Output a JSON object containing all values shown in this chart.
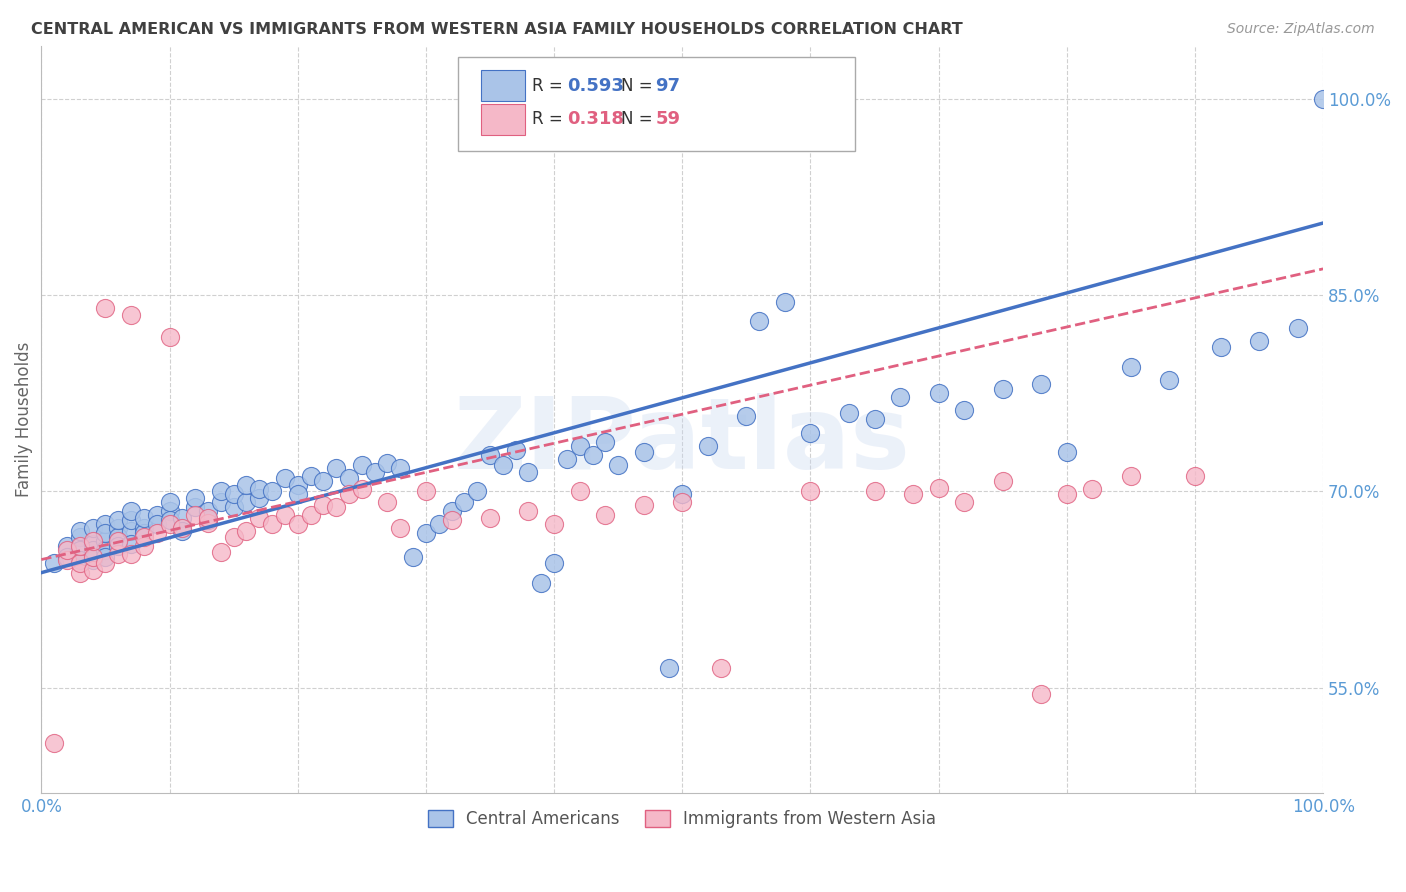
{
  "title": "CENTRAL AMERICAN VS IMMIGRANTS FROM WESTERN ASIA FAMILY HOUSEHOLDS CORRELATION CHART",
  "source": "Source: ZipAtlas.com",
  "ylabel": "Family Households",
  "legend_label1": "Central Americans",
  "legend_label2": "Immigrants from Western Asia",
  "R1": 0.593,
  "N1": 97,
  "R2": 0.318,
  "N2": 59,
  "xlim": [
    0.0,
    1.0
  ],
  "ylim": [
    0.47,
    1.04
  ],
  "yticks": [
    0.55,
    0.7,
    0.85,
    1.0
  ],
  "ytick_labels": [
    "55.0%",
    "70.0%",
    "85.0%",
    "100.0%"
  ],
  "xticks": [
    0.0,
    0.1,
    0.2,
    0.3,
    0.4,
    0.5,
    0.6,
    0.7,
    0.8,
    0.9,
    1.0
  ],
  "xtick_labels": [
    "0.0%",
    "",
    "",
    "",
    "",
    "",
    "",
    "",
    "",
    "",
    "100.0%"
  ],
  "color1": "#aac4e8",
  "color1_edge": "#4472c4",
  "color1_line": "#4472c4",
  "color2": "#f5b8c8",
  "color2_edge": "#e06080",
  "color2_line": "#e06080",
  "background": "#ffffff",
  "grid_color": "#d0d0d0",
  "watermark": "ZIPatlas",
  "title_color": "#404040",
  "axis_label_color": "#5b9bd5",
  "scatter1_x": [
    0.01,
    0.02,
    0.02,
    0.03,
    0.03,
    0.03,
    0.03,
    0.04,
    0.04,
    0.04,
    0.04,
    0.05,
    0.05,
    0.05,
    0.05,
    0.05,
    0.06,
    0.06,
    0.06,
    0.06,
    0.07,
    0.07,
    0.07,
    0.07,
    0.08,
    0.08,
    0.08,
    0.09,
    0.09,
    0.1,
    0.1,
    0.1,
    0.11,
    0.11,
    0.12,
    0.12,
    0.13,
    0.13,
    0.14,
    0.14,
    0.15,
    0.15,
    0.16,
    0.16,
    0.17,
    0.17,
    0.18,
    0.19,
    0.2,
    0.2,
    0.21,
    0.22,
    0.23,
    0.24,
    0.25,
    0.26,
    0.27,
    0.28,
    0.29,
    0.3,
    0.31,
    0.32,
    0.33,
    0.34,
    0.35,
    0.36,
    0.37,
    0.38,
    0.39,
    0.4,
    0.41,
    0.42,
    0.43,
    0.44,
    0.45,
    0.47,
    0.49,
    0.5,
    0.52,
    0.55,
    0.56,
    0.58,
    0.6,
    0.63,
    0.65,
    0.67,
    0.7,
    0.72,
    0.75,
    0.78,
    0.8,
    0.85,
    0.88,
    0.92,
    0.95,
    0.98,
    1.0
  ],
  "scatter1_y": [
    0.645,
    0.658,
    0.65,
    0.665,
    0.655,
    0.648,
    0.67,
    0.66,
    0.672,
    0.648,
    0.655,
    0.662,
    0.675,
    0.655,
    0.668,
    0.65,
    0.672,
    0.665,
    0.678,
    0.658,
    0.67,
    0.678,
    0.66,
    0.685,
    0.672,
    0.668,
    0.68,
    0.682,
    0.675,
    0.685,
    0.678,
    0.692,
    0.68,
    0.67,
    0.688,
    0.695,
    0.678,
    0.685,
    0.692,
    0.7,
    0.688,
    0.698,
    0.692,
    0.705,
    0.695,
    0.702,
    0.7,
    0.71,
    0.705,
    0.698,
    0.712,
    0.708,
    0.718,
    0.71,
    0.72,
    0.715,
    0.722,
    0.718,
    0.65,
    0.668,
    0.675,
    0.685,
    0.692,
    0.7,
    0.728,
    0.72,
    0.732,
    0.715,
    0.63,
    0.645,
    0.725,
    0.735,
    0.728,
    0.738,
    0.72,
    0.73,
    0.565,
    0.698,
    0.735,
    0.758,
    0.83,
    0.845,
    0.745,
    0.76,
    0.755,
    0.772,
    0.775,
    0.762,
    0.778,
    0.782,
    0.73,
    0.795,
    0.785,
    0.81,
    0.815,
    0.825,
    1.0
  ],
  "scatter2_x": [
    0.01,
    0.02,
    0.02,
    0.03,
    0.03,
    0.03,
    0.04,
    0.04,
    0.04,
    0.05,
    0.05,
    0.06,
    0.06,
    0.07,
    0.07,
    0.08,
    0.08,
    0.09,
    0.1,
    0.1,
    0.11,
    0.12,
    0.13,
    0.13,
    0.14,
    0.15,
    0.16,
    0.17,
    0.18,
    0.19,
    0.2,
    0.21,
    0.22,
    0.23,
    0.24,
    0.25,
    0.27,
    0.28,
    0.3,
    0.32,
    0.35,
    0.38,
    0.4,
    0.42,
    0.44,
    0.47,
    0.5,
    0.53,
    0.6,
    0.65,
    0.68,
    0.7,
    0.72,
    0.75,
    0.78,
    0.8,
    0.82,
    0.85,
    0.9
  ],
  "scatter2_y": [
    0.508,
    0.648,
    0.655,
    0.638,
    0.645,
    0.658,
    0.64,
    0.65,
    0.662,
    0.645,
    0.84,
    0.652,
    0.662,
    0.652,
    0.835,
    0.658,
    0.665,
    0.668,
    0.675,
    0.818,
    0.672,
    0.682,
    0.676,
    0.68,
    0.654,
    0.665,
    0.67,
    0.68,
    0.675,
    0.682,
    0.675,
    0.682,
    0.69,
    0.688,
    0.698,
    0.702,
    0.692,
    0.672,
    0.7,
    0.678,
    0.68,
    0.685,
    0.675,
    0.7,
    0.682,
    0.69,
    0.692,
    0.565,
    0.7,
    0.7,
    0.698,
    0.703,
    0.692,
    0.708,
    0.545,
    0.698,
    0.702,
    0.712,
    0.712
  ],
  "line1_x0": 0.0,
  "line1_y0": 0.638,
  "line1_x1": 1.0,
  "line1_y1": 0.905,
  "line2_x0": 0.0,
  "line2_y0": 0.648,
  "line2_x1": 1.0,
  "line2_y1": 0.87
}
